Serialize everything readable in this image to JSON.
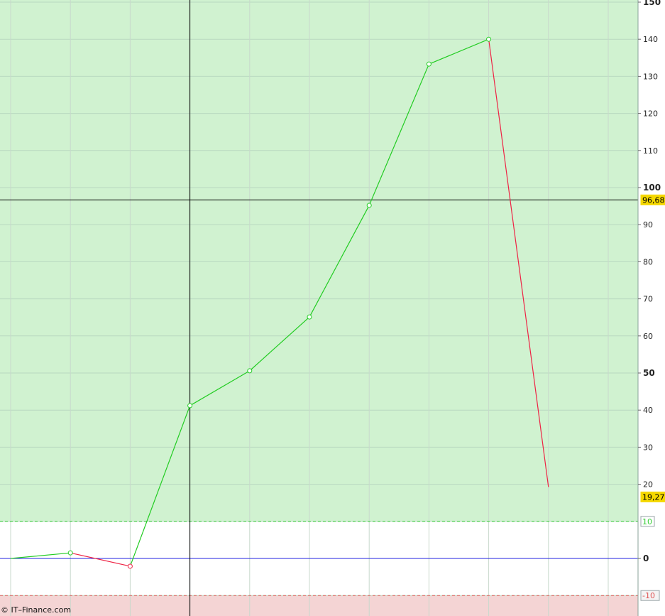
{
  "chart_data": {
    "type": "line",
    "x_index": [
      0,
      1,
      2,
      3,
      4,
      5,
      6,
      7,
      8,
      9
    ],
    "values": [
      0,
      1.5,
      -2.1,
      41.2,
      50.6,
      65.1,
      95.2,
      133.3,
      140.0,
      19.27
    ],
    "ylim": [
      -15.5,
      150.6
    ],
    "yticks": [
      150,
      140,
      130,
      120,
      110,
      100,
      90,
      80,
      70,
      60,
      50,
      40,
      30,
      20,
      0
    ],
    "bold_ticks": [
      150,
      100,
      50,
      0
    ],
    "grid": true,
    "upper_level": {
      "value": 10,
      "label": "10",
      "color": "#33cc33"
    },
    "lower_level": {
      "value": -10,
      "label": "-10",
      "color": "#e05555"
    },
    "zero_line_color": "#2020e0",
    "rising_color": "#22cc22",
    "falling_color": "#ee2244",
    "zone_above_color": "#d0f2d0",
    "zone_below_color": "#f4d4d4",
    "last_value_label": "19,27",
    "crosshair": {
      "index": 3,
      "value": 96.68,
      "label": "96,68"
    },
    "highlight_color": "#f5d800"
  },
  "footer": {
    "copyright": "© IT–Finance.com"
  }
}
